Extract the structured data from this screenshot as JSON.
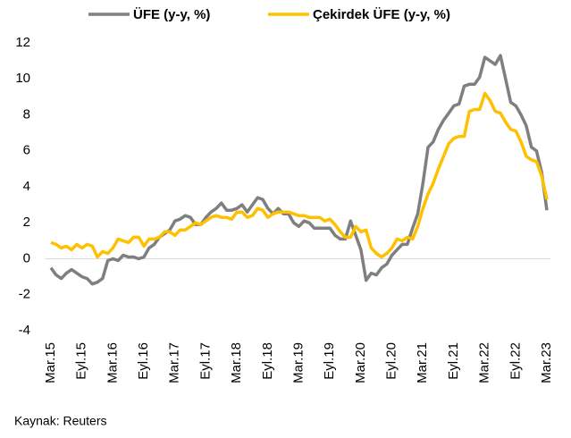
{
  "chart_data": {
    "type": "line",
    "categories": [
      "Mar.15",
      null,
      null,
      null,
      null,
      null,
      "Eyl.15",
      null,
      null,
      null,
      null,
      null,
      "Mar.16",
      null,
      null,
      null,
      null,
      null,
      "Eyl.16",
      null,
      null,
      null,
      null,
      null,
      "Mar.17",
      null,
      null,
      null,
      null,
      null,
      "Eyl.17",
      null,
      null,
      null,
      null,
      null,
      "Mar.18",
      null,
      null,
      null,
      null,
      null,
      "Eyl.18",
      null,
      null,
      null,
      null,
      null,
      "Mar.19",
      null,
      null,
      null,
      null,
      null,
      "Eyl.19",
      null,
      null,
      null,
      null,
      null,
      "Mar.20",
      null,
      null,
      null,
      null,
      null,
      "Eyl.20",
      null,
      null,
      null,
      null,
      null,
      "Mar.21",
      null,
      null,
      null,
      null,
      null,
      "Eyl.21",
      null,
      null,
      null,
      null,
      null,
      "Mar.22",
      null,
      null,
      null,
      null,
      null,
      "Eyl.22",
      null,
      null,
      null,
      null,
      null,
      "Mar.23"
    ],
    "series": [
      {
        "name": "ÜFE (y-y, %)",
        "color": "#7f7f7f",
        "values": [
          -0.5,
          -0.9,
          -1.1,
          -0.8,
          -0.6,
          -0.8,
          -1.0,
          -1.1,
          -1.4,
          -1.3,
          -1.1,
          -0.1,
          0.0,
          -0.1,
          0.2,
          0.1,
          0.1,
          0.0,
          0.1,
          0.6,
          0.8,
          1.2,
          1.4,
          1.6,
          2.1,
          2.2,
          2.4,
          2.3,
          1.9,
          1.9,
          2.3,
          2.6,
          2.8,
          3.1,
          2.7,
          2.7,
          2.8,
          3.0,
          2.6,
          3.0,
          3.4,
          3.3,
          2.8,
          2.5,
          2.8,
          2.5,
          2.5,
          2.0,
          1.8,
          2.1,
          2.0,
          1.7,
          1.7,
          1.7,
          1.7,
          1.3,
          1.1,
          1.1,
          2.1,
          1.3,
          0.5,
          -1.2,
          -0.8,
          -0.9,
          -0.5,
          -0.3,
          0.2,
          0.5,
          0.8,
          0.8,
          1.7,
          2.5,
          4.2,
          6.2,
          6.5,
          7.2,
          7.7,
          8.1,
          8.5,
          8.6,
          9.6,
          9.7,
          9.7,
          10.1,
          11.2,
          11.0,
          10.8,
          11.3,
          10.0,
          8.7,
          8.5,
          8.0,
          7.4,
          6.2,
          6.0,
          4.8,
          2.7
        ]
      },
      {
        "name": "Çekirdek ÜFE (y-y, %)",
        "color": "#ffc000",
        "values": [
          0.9,
          0.8,
          0.6,
          0.7,
          0.5,
          0.8,
          0.6,
          0.8,
          0.7,
          0.1,
          0.4,
          0.3,
          0.6,
          1.1,
          1.0,
          0.9,
          1.2,
          1.2,
          0.7,
          1.1,
          1.1,
          1.2,
          1.5,
          1.5,
          1.3,
          1.6,
          1.6,
          1.8,
          2.0,
          1.9,
          2.1,
          2.3,
          2.4,
          2.3,
          2.3,
          2.2,
          2.6,
          2.6,
          2.3,
          2.4,
          2.8,
          2.7,
          2.3,
          2.5,
          2.6,
          2.6,
          2.6,
          2.5,
          2.4,
          2.4,
          2.3,
          2.3,
          2.3,
          2.1,
          2.2,
          1.9,
          1.5,
          1.2,
          1.2,
          1.8,
          1.5,
          1.6,
          0.6,
          0.3,
          0.1,
          0.3,
          0.6,
          1.1,
          1.0,
          1.2,
          1.1,
          1.8,
          2.8,
          3.6,
          4.2,
          5.0,
          5.7,
          6.4,
          6.7,
          6.8,
          6.8,
          8.2,
          8.3,
          8.3,
          9.2,
          8.8,
          8.2,
          8.1,
          7.6,
          7.2,
          7.1,
          6.5,
          5.7,
          5.5,
          5.4,
          4.6,
          3.3
        ]
      }
    ],
    "ylim": [
      -4,
      12
    ],
    "yticks": [
      12,
      10,
      8,
      6,
      4,
      2,
      0,
      -2,
      -4
    ],
    "legend": "top",
    "source": "Kaynak: Reuters"
  }
}
